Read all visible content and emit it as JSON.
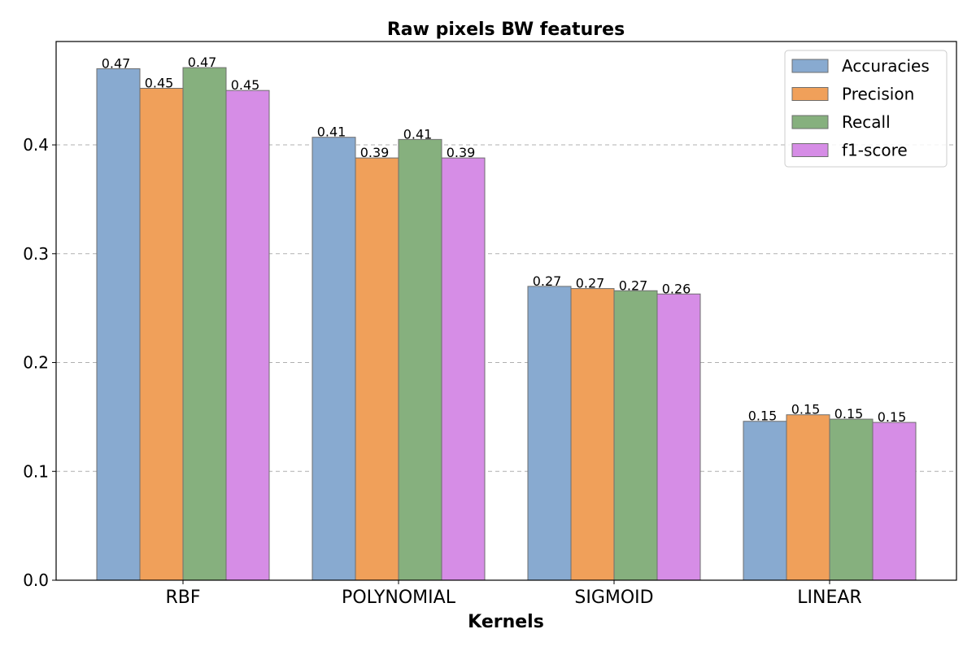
{
  "chart_data": {
    "type": "bar",
    "title": "Raw pixels BW features",
    "xlabel": "Kernels",
    "ylabel": "",
    "categories": [
      "RBF",
      "POLYNOMIAL",
      "SIGMOID",
      "LINEAR"
    ],
    "ylim": [
      0,
      0.495
    ],
    "yticks": [
      "0.0",
      "0.1",
      "0.2",
      "0.3",
      "0.4"
    ],
    "grid": "y-dashed",
    "legend_position": "top-right",
    "series": [
      {
        "name": "Accuracies",
        "color": "#88aad0",
        "values": [
          0.47,
          0.407,
          0.27,
          0.146
        ],
        "labels": [
          "0.47",
          "0.41",
          "0.27",
          "0.15"
        ]
      },
      {
        "name": "Precision",
        "color": "#f0a05a",
        "values": [
          0.452,
          0.388,
          0.268,
          0.152
        ],
        "labels": [
          "0.45",
          "0.39",
          "0.27",
          "0.15"
        ]
      },
      {
        "name": "Recall",
        "color": "#86b07e",
        "values": [
          0.471,
          0.405,
          0.266,
          0.148
        ],
        "labels": [
          "0.47",
          "0.41",
          "0.27",
          "0.15"
        ]
      },
      {
        "name": "f1-score",
        "color": "#d68de6",
        "values": [
          0.45,
          0.388,
          0.263,
          0.145
        ],
        "labels": [
          "0.45",
          "0.39",
          "0.26",
          "0.15"
        ]
      }
    ]
  }
}
